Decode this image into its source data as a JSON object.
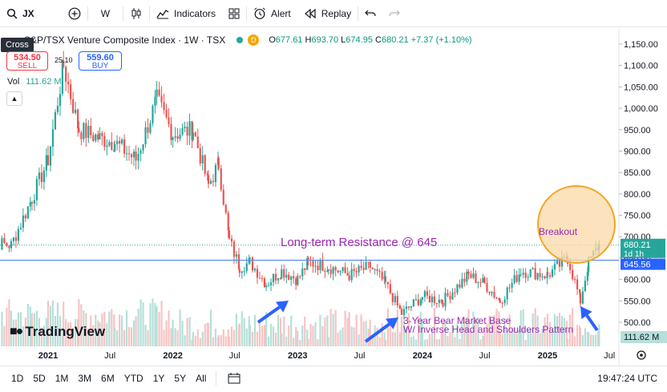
{
  "toolbar": {
    "symbol": "JX",
    "interval": "W",
    "indicators_label": "Indicators",
    "alert_label": "Alert",
    "replay_label": "Replay"
  },
  "legend": {
    "title": "S&P/TSX Venture Composite Index · 1W · TSX",
    "badge": "D",
    "open_label": "O",
    "open": "677.61",
    "high_label": "H",
    "high": "693.70",
    "low_label": "L",
    "low": "674.95",
    "close_label": "C",
    "close": "680.21",
    "change": "+7.37 (+1.10%)"
  },
  "crosshair_tooltip": "Cross",
  "trade": {
    "sell_price": "534.50",
    "sell_label": "SELL",
    "buy_price": "559.60",
    "buy_label": "BUY",
    "spread": "25.10"
  },
  "volume": {
    "label": "Vol",
    "value": "111.62 M"
  },
  "brand": "TradingView",
  "bottombar": {
    "ranges": [
      "1D",
      "5D",
      "1M",
      "3M",
      "6M",
      "YTD",
      "1Y",
      "5Y",
      "All"
    ],
    "clock": "19:47:24 UTC"
  },
  "colors": {
    "up": "#26a69a",
    "down": "#ef5350",
    "annotation": "#9c27b0",
    "arrow": "#2962ff",
    "resistance": "#5b8def",
    "circle_fill": "#fbd9a8",
    "circle_stroke": "#f5a623"
  },
  "chart_data": {
    "type": "candlestick",
    "title": "S&P/TSX Venture Composite Index · 1W · TSX",
    "ylim": [
      480,
      1170
    ],
    "y_ticks": [
      500,
      550,
      600,
      650,
      700,
      750,
      800,
      850,
      900,
      950,
      1000,
      1050,
      1100,
      1150
    ],
    "y_tick_labels": [
      "500.00",
      "550.00",
      "600.00",
      "650.00",
      "700.00",
      "750.00",
      "800.00",
      "850.00",
      "900.00",
      "950.00",
      "1,000.00",
      "1,050.00",
      "1,100.00",
      "1,150.00"
    ],
    "x_ticks": [
      "2021",
      "Jul",
      "2022",
      "Jul",
      "2023",
      "Jul",
      "2024",
      "Jul",
      "2025",
      "Jul"
    ],
    "x_tick_dates": [
      "2021-01-01",
      "2021-07-01",
      "2022-01-01",
      "2022-07-01",
      "2023-01-01",
      "2023-07-01",
      "2024-01-01",
      "2024-07-01",
      "2025-01-01",
      "2025-07-01"
    ],
    "series": [
      {
        "timeframe": "1W",
        "approximate_close_path": [
          {
            "date": "2020-07-01",
            "close": 690
          },
          {
            "date": "2020-09-15",
            "close": 680
          },
          {
            "date": "2020-11-15",
            "close": 790
          },
          {
            "date": "2021-01-01",
            "close": 880
          },
          {
            "date": "2021-02-15",
            "close": 1100
          },
          {
            "date": "2021-04-01",
            "close": 950
          },
          {
            "date": "2021-06-01",
            "close": 930
          },
          {
            "date": "2021-07-15",
            "close": 920
          },
          {
            "date": "2021-09-15",
            "close": 880
          },
          {
            "date": "2021-11-15",
            "close": 1020
          },
          {
            "date": "2022-01-01",
            "close": 940
          },
          {
            "date": "2022-03-01",
            "close": 950
          },
          {
            "date": "2022-04-15",
            "close": 820
          },
          {
            "date": "2022-05-15",
            "close": 870
          },
          {
            "date": "2022-06-15",
            "close": 690
          },
          {
            "date": "2022-07-15",
            "close": 630
          },
          {
            "date": "2022-08-15",
            "close": 640
          },
          {
            "date": "2022-10-01",
            "close": 590
          },
          {
            "date": "2022-11-15",
            "close": 620
          },
          {
            "date": "2023-01-01",
            "close": 600
          },
          {
            "date": "2023-02-01",
            "close": 640
          },
          {
            "date": "2023-04-01",
            "close": 630
          },
          {
            "date": "2023-06-01",
            "close": 610
          },
          {
            "date": "2023-08-01",
            "close": 630
          },
          {
            "date": "2023-09-15",
            "close": 590
          },
          {
            "date": "2023-11-01",
            "close": 520
          },
          {
            "date": "2024-01-01",
            "close": 560
          },
          {
            "date": "2024-03-01",
            "close": 550
          },
          {
            "date": "2024-05-15",
            "close": 610
          },
          {
            "date": "2024-07-01",
            "close": 590
          },
          {
            "date": "2024-08-15",
            "close": 550
          },
          {
            "date": "2024-10-15",
            "close": 620
          },
          {
            "date": "2025-01-01",
            "close": 610
          },
          {
            "date": "2025-03-01",
            "close": 650
          },
          {
            "date": "2025-04-07",
            "close": 550
          },
          {
            "date": "2025-05-01",
            "close": 640
          },
          {
            "date": "2025-06-01",
            "close": 680
          }
        ],
        "last": {
          "open": 677.61,
          "high": 693.7,
          "low": 674.95,
          "close": 680.21
        }
      }
    ],
    "resistance_level": 645,
    "price_labels": [
      {
        "value": 680.21,
        "text": "680.21",
        "sub": "1d 1h"
      },
      {
        "value": 645.56,
        "text": "645.56"
      }
    ],
    "volume_last": "111.62 M",
    "annotations": {
      "resistance": "Long-term Resistance @ 645",
      "breakout": "Breakout",
      "base_line1": "3-Year Bear Market Base",
      "base_line2": "W/ Inverse Head and Shoulders Pattern"
    }
  }
}
